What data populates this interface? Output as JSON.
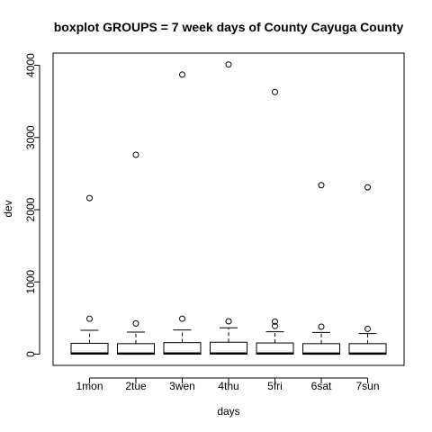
{
  "chart_data": {
    "type": "boxplot",
    "title": "boxplot GROUPS = 7 week days of County Cayuga County",
    "xlabel": "days",
    "ylabel": "dev",
    "ylim": [
      -150,
      4150
    ],
    "yticks": [
      0,
      1000,
      2000,
      3000,
      4000
    ],
    "categories": [
      "1mon",
      "2tue",
      "3wen",
      "4thu",
      "5fri",
      "6sat",
      "7sun"
    ],
    "boxes": [
      {
        "whisker_low": 0,
        "q1": 0,
        "median": 10,
        "q3": 150,
        "whisker_high": 330,
        "outliers": [
          490,
          2160
        ]
      },
      {
        "whisker_low": 0,
        "q1": 0,
        "median": 8,
        "q3": 145,
        "whisker_high": 305,
        "outliers": [
          425,
          2760
        ]
      },
      {
        "whisker_low": 0,
        "q1": 0,
        "median": 10,
        "q3": 160,
        "whisker_high": 335,
        "outliers": [
          490,
          3870
        ]
      },
      {
        "whisker_low": 0,
        "q1": 0,
        "median": 10,
        "q3": 165,
        "whisker_high": 365,
        "outliers": [
          455,
          4010
        ]
      },
      {
        "whisker_low": 0,
        "q1": 0,
        "median": 10,
        "q3": 155,
        "whisker_high": 310,
        "outliers": [
          390,
          450,
          3630
        ]
      },
      {
        "whisker_low": 0,
        "q1": 0,
        "median": 8,
        "q3": 145,
        "whisker_high": 300,
        "outliers": [
          380,
          2340
        ]
      },
      {
        "whisker_low": 0,
        "q1": 0,
        "median": 8,
        "q3": 145,
        "whisker_high": 285,
        "outliers": [
          350,
          2310
        ]
      }
    ]
  }
}
